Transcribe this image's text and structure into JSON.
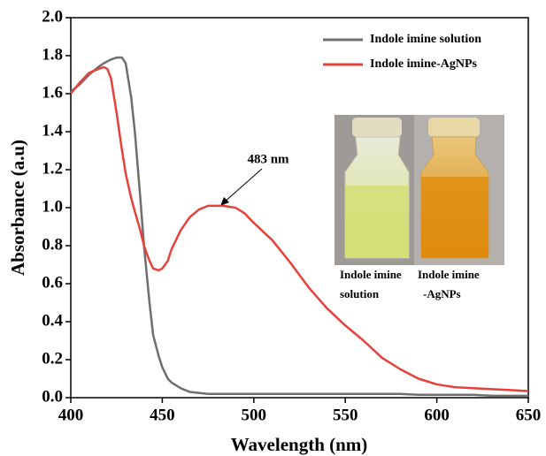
{
  "chart_data": {
    "type": "line",
    "xlabel": "Wavelength (nm)",
    "ylabel": "Absorbance (a.u)",
    "x": [
      400,
      405,
      410,
      415,
      418,
      420,
      422,
      425,
      428,
      430,
      433,
      435,
      438,
      440,
      443,
      445,
      448,
      450,
      453,
      455,
      460,
      465,
      470,
      475,
      483,
      490,
      495,
      500,
      510,
      520,
      530,
      540,
      550,
      560,
      570,
      580,
      590,
      600,
      610,
      620,
      630,
      640,
      650
    ],
    "series": [
      {
        "name": "Indole imine solution",
        "color": "#6e6e6e",
        "values": [
          1.61,
          1.65,
          1.7,
          1.74,
          1.76,
          1.77,
          1.78,
          1.79,
          1.79,
          1.76,
          1.58,
          1.4,
          1.05,
          0.8,
          0.5,
          0.33,
          0.22,
          0.16,
          0.1,
          0.08,
          0.05,
          0.03,
          0.025,
          0.02,
          0.02,
          0.02,
          0.02,
          0.02,
          0.02,
          0.02,
          0.02,
          0.02,
          0.02,
          0.02,
          0.02,
          0.02,
          0.015,
          0.015,
          0.015,
          0.015,
          0.01,
          0.01,
          0.01
        ]
      },
      {
        "name": "Indole imine-AgNPs",
        "color": "#e8413b",
        "values": [
          1.6,
          1.66,
          1.71,
          1.73,
          1.74,
          1.73,
          1.68,
          1.5,
          1.3,
          1.18,
          1.05,
          0.98,
          0.88,
          0.8,
          0.72,
          0.68,
          0.67,
          0.68,
          0.72,
          0.78,
          0.88,
          0.95,
          0.99,
          1.01,
          1.01,
          1.0,
          0.97,
          0.92,
          0.83,
          0.71,
          0.58,
          0.47,
          0.38,
          0.3,
          0.21,
          0.15,
          0.1,
          0.07,
          0.055,
          0.05,
          0.045,
          0.04,
          0.035
        ]
      }
    ],
    "xlim": [
      400,
      650
    ],
    "xticks": [
      400,
      450,
      500,
      550,
      600,
      650
    ],
    "ylim": [
      0,
      2
    ],
    "yticks": [
      {
        "value": 0,
        "label": "0.0"
      },
      0.2,
      0.4,
      0.6,
      0.8,
      {
        "value": 1,
        "label": "1.0"
      },
      1.2,
      1.4,
      1.6,
      1.8,
      {
        "value": 2,
        "label": "2.0"
      }
    ],
    "annotation": "483 nm",
    "inset_labels": [
      [
        "Indole imine",
        "solution"
      ],
      [
        "Indole imine",
        "-AgNPs"
      ]
    ],
    "legend": "upper right"
  }
}
